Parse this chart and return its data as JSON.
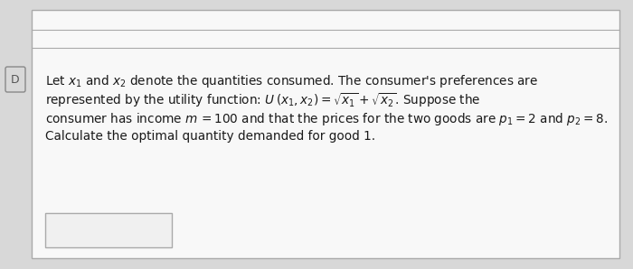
{
  "bg_color": "#d8d8d8",
  "card_bg": "#f0f0f0",
  "card_border": "#aaaaaa",
  "top_bar_color": "#aaaaaa",
  "line1": "Let $x_1$ and $x_2$ denote the quantities consumed. The consumer's preferences are",
  "line2": "represented by the utility function: $U\\,(x_1, x_2) = \\sqrt{x_1} + \\sqrt{x_2}$. Suppose the",
  "line3": "consumer has income $m\\,{=}100$ and that the prices for the two goods are $p_1{=}2$ and $p_2{=}8$.",
  "line4": "Calculate the optimal quantity demanded for good 1.",
  "text_color": "#1a1a1a",
  "font_size": 9.8,
  "d_label_color": "#555555"
}
